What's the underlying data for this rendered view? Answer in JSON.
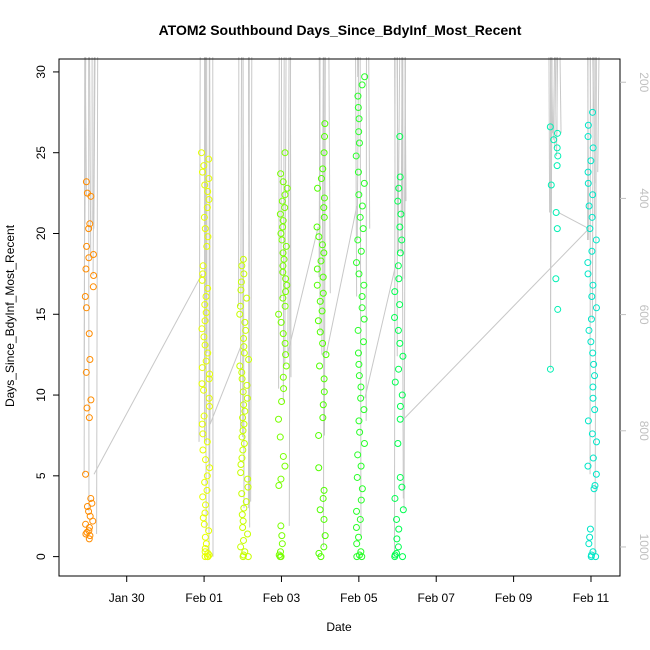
{
  "chart_data": {
    "type": "scatter",
    "title": "ATOM2 Southbound Days_Since_BdyInf_Most_Recent",
    "xlabel": "Date",
    "ylabel": "Days_Since_BdyInf_Most_Recent",
    "x_axis_type": "date",
    "xlim": [
      "2024-01-28T06:00",
      "2024-02-11T18:00"
    ],
    "ylim": [
      -1.2,
      30.8
    ],
    "x_ticks": [
      {
        "date": "2024-01-30",
        "label": "Jan 30"
      },
      {
        "date": "2024-02-01",
        "label": "Feb 01"
      },
      {
        "date": "2024-02-03",
        "label": "Feb 03"
      },
      {
        "date": "2024-02-05",
        "label": "Feb 05"
      },
      {
        "date": "2024-02-07",
        "label": "Feb 07"
      },
      {
        "date": "2024-02-09",
        "label": "Feb 09"
      },
      {
        "date": "2024-02-11",
        "label": "Feb 11"
      }
    ],
    "y_ticks": [
      0,
      5,
      10,
      15,
      20,
      25,
      30
    ],
    "secondary_y": {
      "side": "right",
      "reversed": true,
      "range": [
        160,
        1050
      ],
      "ticks": [
        200,
        400,
        600,
        800,
        1000
      ],
      "line_color": "#c8c8c8"
    },
    "grid": false,
    "legend": "none",
    "clusters": [
      {
        "date": "2024-01-29",
        "color": "#ff8c00",
        "values": [
          1.1,
          1.3,
          1.4,
          1.5,
          1.6,
          1.8,
          2.0,
          2.2,
          2.5,
          2.8,
          3.1,
          3.3,
          3.6,
          5.1,
          8.6,
          9.2,
          9.7,
          11.4,
          12.2,
          13.8,
          15.4,
          16.1,
          16.7,
          17.4,
          17.8,
          18.5,
          18.7,
          19.2,
          20.3,
          20.6,
          22.3,
          22.5,
          23.2
        ]
      },
      {
        "date": "2024-02-01",
        "color": "#e6ff00",
        "values": [
          0,
          0,
          0,
          0.1,
          0.2,
          0.3,
          0.5,
          0.8,
          1.2,
          1.6,
          2.0,
          2.4,
          2.7,
          3.2,
          3.7,
          4.1,
          4.6,
          5.0,
          5.5,
          6.0,
          6.6,
          7.1,
          7.6,
          8.2,
          8.7,
          9.3,
          9.8,
          10.3,
          10.7,
          11.0,
          11.3,
          11.7,
          12.1,
          12.6,
          13.1,
          13.6,
          14.1,
          14.6,
          15.1,
          15.6,
          16.1,
          16.6,
          17.1,
          17.5,
          18.0,
          19.2,
          19.8,
          20.3,
          21.0,
          21.6,
          22.1,
          22.6,
          23.0,
          23.4,
          23.8,
          24.2,
          24.6,
          25.0
        ]
      },
      {
        "date": "2024-02-02",
        "color": "#c8ff00",
        "values": [
          0,
          0,
          0.1,
          0.3,
          0.6,
          1.0,
          1.4,
          1.8,
          2.2,
          2.6,
          3.0,
          3.4,
          3.9,
          4.3,
          4.8,
          5.2,
          5.7,
          6.1,
          6.6,
          7.0,
          7.4,
          7.8,
          8.2,
          8.6,
          9.0,
          9.4,
          9.8,
          10.2,
          10.6,
          11.0,
          11.4,
          11.8,
          12.2,
          12.6,
          13.0,
          13.5,
          14.0,
          14.5,
          15.0,
          15.5,
          16.0,
          16.5,
          17.0,
          17.5,
          18.0,
          18.4
        ]
      },
      {
        "date": "2024-02-03",
        "color": "#78ff00",
        "values": [
          0,
          0,
          0.1,
          0.3,
          0.8,
          1.3,
          1.9,
          4.4,
          4.8,
          5.6,
          6.2,
          7.4,
          8.5,
          9.6,
          10.4,
          11.1,
          11.8,
          12.5,
          13.2,
          13.8,
          14.5,
          15.0,
          15.5,
          16.0,
          16.4,
          16.8,
          17.2,
          17.6,
          18.0,
          18.4,
          18.8,
          19.2,
          19.6,
          20.0,
          20.4,
          20.8,
          21.2,
          21.6,
          22.0,
          22.4,
          22.8,
          23.2,
          23.7,
          25.0
        ]
      },
      {
        "date": "2024-02-04",
        "color": "#50ff00",
        "values": [
          0,
          0.2,
          0.6,
          1.3,
          2.3,
          2.9,
          3.6,
          4.1,
          5.5,
          7.5,
          8.6,
          9.4,
          10.2,
          11.0,
          11.8,
          12.5,
          13.2,
          13.9,
          14.6,
          15.2,
          15.8,
          16.3,
          16.8,
          17.3,
          17.8,
          18.3,
          18.8,
          19.3,
          19.8,
          20.4,
          21.0,
          21.6,
          22.2,
          22.8,
          23.4,
          24.0,
          25.0,
          26.0,
          26.8
        ]
      },
      {
        "date": "2024-02-05",
        "color": "#28ff28",
        "values": [
          0,
          0,
          0.1,
          0.3,
          0.8,
          1.2,
          1.8,
          2.3,
          2.8,
          3.5,
          4.2,
          4.9,
          5.6,
          6.3,
          7.0,
          7.7,
          8.4,
          9.1,
          9.8,
          10.5,
          11.2,
          11.9,
          12.6,
          13.3,
          14.0,
          14.7,
          15.4,
          16.1,
          16.8,
          17.5,
          18.2,
          18.9,
          19.6,
          20.3,
          21.0,
          21.7,
          22.4,
          23.1,
          23.8,
          24.8,
          25.6,
          26.3,
          27.1,
          27.8,
          28.5,
          29.2,
          29.7
        ]
      },
      {
        "date": "2024-02-06",
        "color": "#00ff50",
        "values": [
          0,
          0,
          0.1,
          0.2,
          0.6,
          1.1,
          1.7,
          2.3,
          2.9,
          3.6,
          4.3,
          4.9,
          7.0,
          8.5,
          9.3,
          10.0,
          10.8,
          11.6,
          12.4,
          13.2,
          14.0,
          14.8,
          15.6,
          16.4,
          17.2,
          18.0,
          18.8,
          19.6,
          20.4,
          21.2,
          22.0,
          22.8,
          23.5,
          26.0
        ]
      },
      {
        "date": "2024-02-10",
        "color": "#00f0b4",
        "values": [
          11.6,
          15.3,
          17.2,
          20.3,
          21.3,
          23.0,
          24.2,
          24.8,
          25.3,
          25.8,
          26.2,
          26.6
        ]
      },
      {
        "date": "2024-02-11",
        "color": "#00e6c8",
        "values": [
          0,
          0,
          0.1,
          0.3,
          0.8,
          1.2,
          1.7,
          4.2,
          4.4,
          5.1,
          5.6,
          6.1,
          7.1,
          7.6,
          8.4,
          9.1,
          9.8,
          10.5,
          11.2,
          11.9,
          12.6,
          13.3,
          14.0,
          14.7,
          15.4,
          16.1,
          16.8,
          17.5,
          18.2,
          18.9,
          19.6,
          20.3,
          21.0,
          21.7,
          22.4,
          23.1,
          23.8,
          24.5,
          25.3,
          26.0,
          26.7,
          27.5
        ]
      }
    ]
  }
}
